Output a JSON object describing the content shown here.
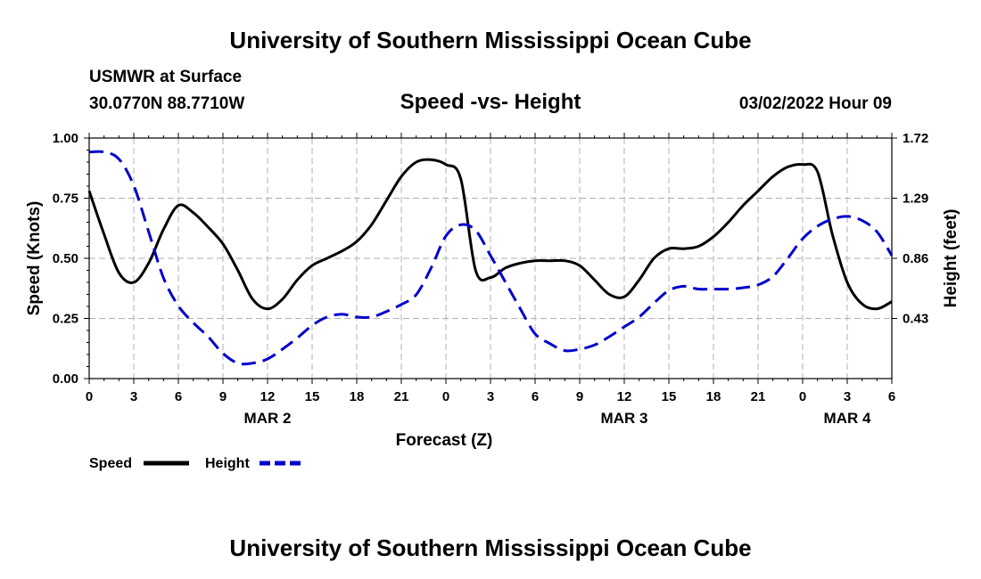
{
  "header": {
    "title": "University of Southern Mississippi Ocean Cube",
    "station": "USMWR at Surface",
    "coords": "30.0770N  88.7710W",
    "subtitle": "Speed -vs- Height",
    "datetime": "03/02/2022 Hour 09"
  },
  "footer": {
    "title": "University of Southern Mississippi Ocean Cube"
  },
  "legend": {
    "speed_label": "Speed",
    "height_label": "Height"
  },
  "colors": {
    "speed": "#000000",
    "height": "#0000cc",
    "grid": "#b0b0b0"
  },
  "chart_data": {
    "type": "line",
    "title": "Speed -vs- Height",
    "xlabel": "Forecast (Z)",
    "ylabel": "Speed (Knots)",
    "y2label": "Height (feet)",
    "xlim": [
      0,
      54
    ],
    "ylim": [
      0,
      1
    ],
    "y2lim": [
      0,
      1.72
    ],
    "x_tick_values": [
      0,
      3,
      6,
      9,
      12,
      15,
      18,
      21,
      24,
      27,
      30,
      33,
      36,
      39,
      42,
      45,
      48,
      51,
      54
    ],
    "x_tick_labels": [
      "0",
      "3",
      "6",
      "9",
      "12",
      "15",
      "18",
      "21",
      "0",
      "3",
      "6",
      "9",
      "12",
      "15",
      "18",
      "21",
      "0",
      "3",
      "6"
    ],
    "date_labels": [
      {
        "label": "MAR 2",
        "x": 12
      },
      {
        "label": "MAR 3",
        "x": 36
      },
      {
        "label": "MAR 4",
        "x": 51
      }
    ],
    "y_ticks": [
      0,
      0.25,
      0.5,
      0.75,
      1
    ],
    "y_tick_labels": [
      "0.00",
      "0.25",
      "0.50",
      "0.75",
      "1.00"
    ],
    "y2_ticks": [
      0.43,
      0.86,
      1.29,
      1.72
    ],
    "y2_tick_labels": [
      "0.43",
      "0.86",
      "1.29",
      "1.72"
    ],
    "grid": true,
    "series": [
      {
        "name": "Speed",
        "axis": "left",
        "x": [
          0,
          1,
          2,
          3,
          4,
          5,
          6,
          7,
          8,
          9,
          10,
          11,
          12,
          13,
          14,
          15,
          16,
          17,
          18,
          19,
          20,
          21,
          22,
          23,
          24,
          25,
          26,
          27,
          28,
          29,
          30,
          31,
          32,
          33,
          34,
          35,
          36,
          37,
          38,
          39,
          40,
          41,
          42,
          43,
          44,
          45,
          46,
          47,
          48,
          49,
          50,
          51,
          52,
          53,
          54
        ],
        "values": [
          0.78,
          0.6,
          0.44,
          0.4,
          0.48,
          0.62,
          0.72,
          0.69,
          0.63,
          0.56,
          0.45,
          0.33,
          0.29,
          0.33,
          0.41,
          0.47,
          0.5,
          0.53,
          0.57,
          0.64,
          0.74,
          0.84,
          0.9,
          0.91,
          0.89,
          0.83,
          0.45,
          0.42,
          0.46,
          0.48,
          0.49,
          0.49,
          0.49,
          0.47,
          0.41,
          0.35,
          0.34,
          0.41,
          0.5,
          0.54,
          0.54,
          0.55,
          0.59,
          0.65,
          0.72,
          0.78,
          0.84,
          0.88,
          0.89,
          0.86,
          0.6,
          0.4,
          0.31,
          0.29,
          0.32
        ]
      },
      {
        "name": "Height",
        "axis": "right",
        "x": [
          0,
          1,
          2,
          3,
          4,
          5,
          6,
          7,
          8,
          9,
          10,
          11,
          12,
          13,
          14,
          15,
          16,
          17,
          18,
          19,
          20,
          21,
          22,
          23,
          24,
          25,
          26,
          27,
          28,
          29,
          30,
          31,
          32,
          33,
          34,
          35,
          36,
          37,
          38,
          39,
          40,
          41,
          42,
          43,
          44,
          45,
          46,
          47,
          48,
          49,
          50,
          51,
          52,
          53,
          54
        ],
        "values": [
          1.62,
          1.62,
          1.57,
          1.38,
          1.05,
          0.72,
          0.52,
          0.4,
          0.3,
          0.18,
          0.11,
          0.11,
          0.14,
          0.21,
          0.29,
          0.38,
          0.44,
          0.46,
          0.44,
          0.44,
          0.48,
          0.53,
          0.6,
          0.79,
          1.02,
          1.1,
          1.06,
          0.88,
          0.69,
          0.5,
          0.32,
          0.25,
          0.2,
          0.21,
          0.24,
          0.3,
          0.37,
          0.44,
          0.54,
          0.63,
          0.66,
          0.64,
          0.64,
          0.64,
          0.65,
          0.67,
          0.73,
          0.86,
          1.0,
          1.09,
          1.14,
          1.16,
          1.13,
          1.05,
          0.88
        ]
      }
    ]
  }
}
